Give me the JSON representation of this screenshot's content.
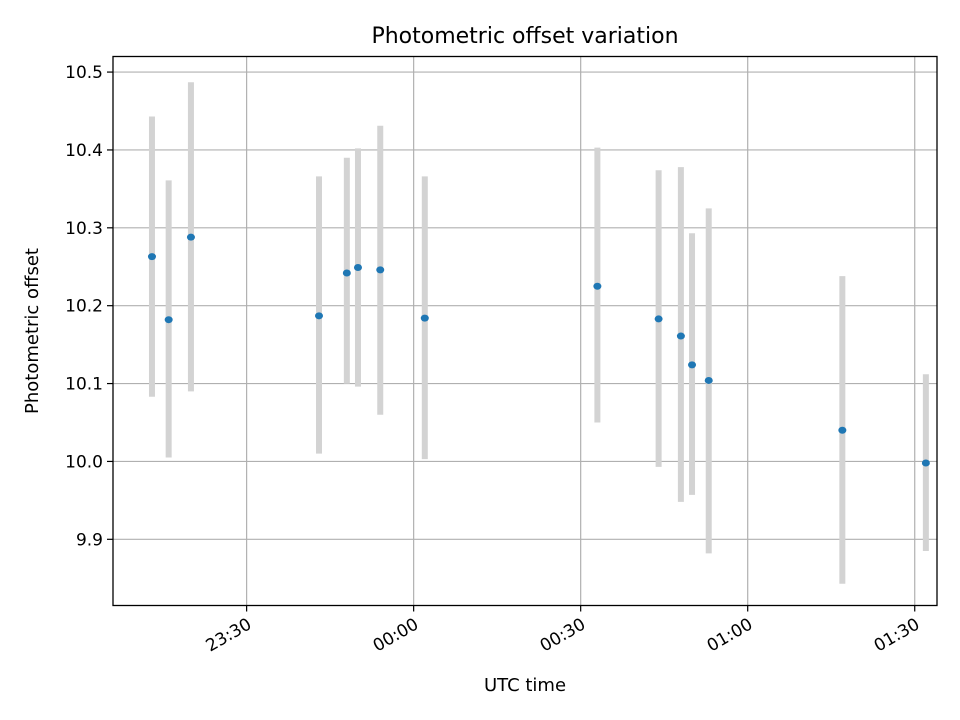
{
  "chart_data": {
    "type": "scatter",
    "title": "Photometric offset variation",
    "xlabel": "UTC time",
    "ylabel": "Photometric offset",
    "x_axis": {
      "type": "time",
      "range": [
        "23:06",
        "01:34"
      ],
      "ticks": [
        "23:30",
        "00:00",
        "00:30",
        "01:00",
        "01:30"
      ]
    },
    "ylim": [
      9.815,
      10.52
    ],
    "yticks": [
      "9.9",
      "10.0",
      "10.1",
      "10.2",
      "10.3",
      "10.4",
      "10.5"
    ],
    "grid": true,
    "series": [
      {
        "points": [
          {
            "x": "23:13",
            "y": 10.263,
            "ylow": 10.083,
            "yhigh": 10.443
          },
          {
            "x": "23:16",
            "y": 10.182,
            "ylow": 10.005,
            "yhigh": 10.361
          },
          {
            "x": "23:20",
            "y": 10.288,
            "ylow": 10.09,
            "yhigh": 10.487
          },
          {
            "x": "23:43",
            "y": 10.187,
            "ylow": 10.01,
            "yhigh": 10.366
          },
          {
            "x": "23:48",
            "y": 10.242,
            "ylow": 10.1,
            "yhigh": 10.39
          },
          {
            "x": "23:50",
            "y": 10.249,
            "ylow": 10.096,
            "yhigh": 10.402
          },
          {
            "x": "23:54",
            "y": 10.246,
            "ylow": 10.06,
            "yhigh": 10.431
          },
          {
            "x": "00:02",
            "y": 10.184,
            "ylow": 10.003,
            "yhigh": 10.366
          },
          {
            "x": "00:33",
            "y": 10.225,
            "ylow": 10.05,
            "yhigh": 10.403
          },
          {
            "x": "00:44",
            "y": 10.183,
            "ylow": 9.993,
            "yhigh": 10.374
          },
          {
            "x": "00:48",
            "y": 10.161,
            "ylow": 9.948,
            "yhigh": 10.378
          },
          {
            "x": "00:50",
            "y": 10.124,
            "ylow": 9.957,
            "yhigh": 10.293
          },
          {
            "x": "00:53",
            "y": 10.104,
            "ylow": 9.882,
            "yhigh": 10.325
          },
          {
            "x": "01:17",
            "y": 10.04,
            "ylow": 9.843,
            "yhigh": 10.238
          },
          {
            "x": "01:32",
            "y": 9.998,
            "ylow": 9.885,
            "yhigh": 10.112
          }
        ]
      }
    ],
    "colors": {
      "point": "#1f77b4",
      "errorbar": "#d3d3d3",
      "grid": "#b0b0b0",
      "axes": "#000000"
    }
  }
}
